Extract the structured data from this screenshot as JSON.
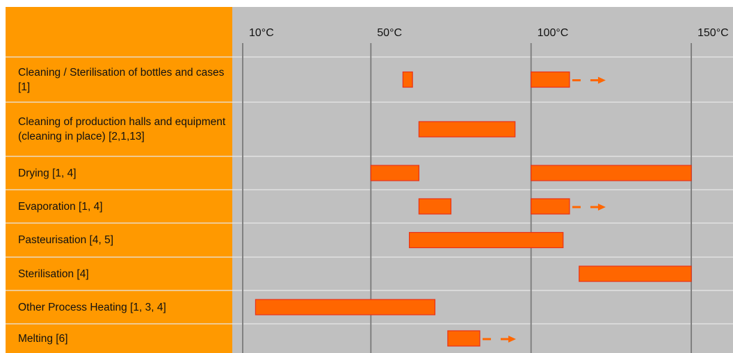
{
  "colors": {
    "label_panel": "#FF9900",
    "plot_background": "#C0C0C0",
    "bar_fill": "#FF6600",
    "bar_stroke": "#E8311A",
    "arrow": "#FF6600",
    "gridline": "#808080",
    "row_separator": "#E8E8E8"
  },
  "chart_data": {
    "type": "bar",
    "orientation": "horizontal-range",
    "title": "",
    "xlabel": "",
    "ylabel": "",
    "unit": "°C",
    "xlim": [
      6,
      151.5
    ],
    "x_ticks": [
      {
        "value": 10,
        "label": "10°C"
      },
      {
        "value": 50,
        "label": "50°C"
      },
      {
        "value": 100,
        "label": "100°C"
      },
      {
        "value": 150,
        "label": "150°C"
      }
    ],
    "grid": true,
    "legend": "none",
    "categories": [
      "Cleaning / Sterilisation of bottles and cases [1]",
      "Cleaning of production halls and equipment (cleaning in place) [2,1,13]",
      "Drying [1, 4]",
      "Evaporation [1, 4]",
      "Pasteurisation [4, 5]",
      "Sterilisation [4]",
      "Other Process Heating [1, 3, 4]",
      "Melting [6]"
    ],
    "ranges": [
      [
        {
          "start": 60,
          "end": 63,
          "extends_beyond": false
        },
        {
          "start": 100,
          "end": 112,
          "extends_beyond": true
        }
      ],
      [
        {
          "start": 65,
          "end": 95,
          "extends_beyond": false
        }
      ],
      [
        {
          "start": 50,
          "end": 65,
          "extends_beyond": false
        },
        {
          "start": 100,
          "end": 150,
          "extends_beyond": false
        }
      ],
      [
        {
          "start": 65,
          "end": 75,
          "extends_beyond": false
        },
        {
          "start": 100,
          "end": 112,
          "extends_beyond": true
        }
      ],
      [
        {
          "start": 62,
          "end": 110,
          "extends_beyond": false
        }
      ],
      [
        {
          "start": 115,
          "end": 150,
          "extends_beyond": false
        }
      ],
      [
        {
          "start": 14,
          "end": 70,
          "extends_beyond": false
        }
      ],
      [
        {
          "start": 74,
          "end": 84,
          "extends_beyond": true
        }
      ]
    ]
  }
}
